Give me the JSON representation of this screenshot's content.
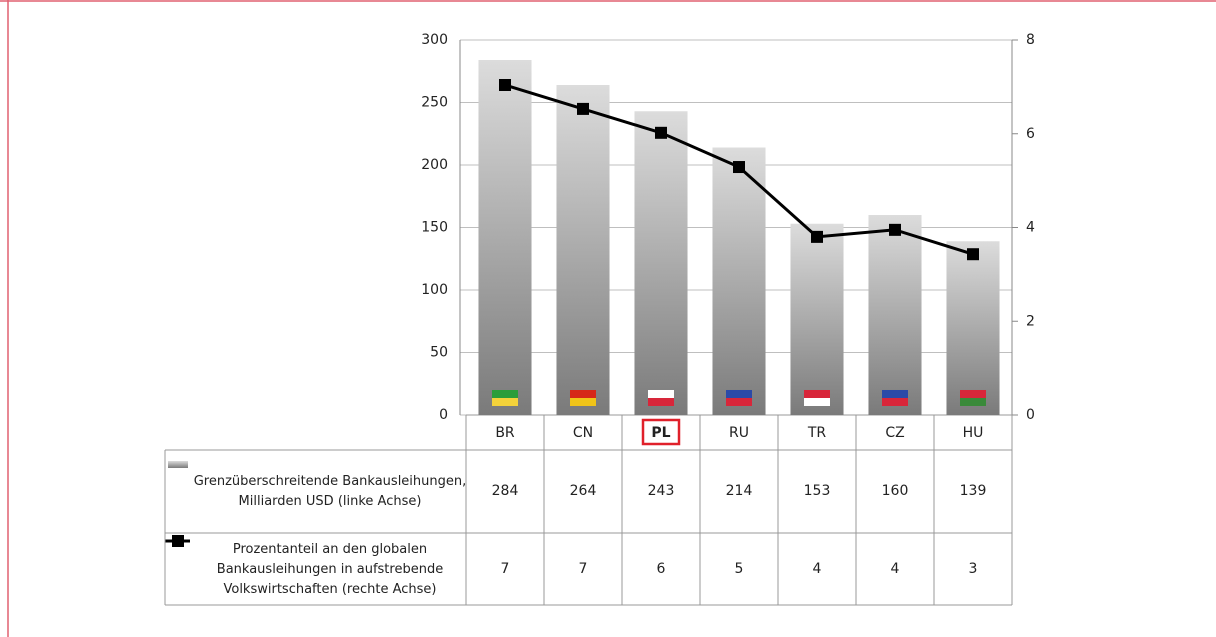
{
  "chart_data": {
    "type": "bar",
    "categories": [
      "BR",
      "CN",
      "PL",
      "RU",
      "TR",
      "CZ",
      "HU"
    ],
    "highlight": "PL",
    "series": [
      {
        "name": "Grenzüberschreitende Bankausleihungen, Milliarden USD (linke Achse)",
        "type": "bar",
        "color": "#8c8c8c",
        "values": [
          284,
          264,
          243,
          214,
          153,
          160,
          139
        ]
      },
      {
        "name": "Prozentanteil an den globalen Bankausleihungen in aufstrebende Volkswirtschaften (rechte Achse)",
        "type": "line",
        "axis": "y2",
        "color": "#000000",
        "values": [
          7.04,
          6.53,
          6.02,
          5.29,
          3.8,
          3.95,
          3.43
        ],
        "value_labels": [
          "7",
          "7",
          "6",
          "5",
          "4",
          "4",
          "3"
        ]
      }
    ],
    "ylim": [
      0,
      300
    ],
    "yticks": [
      0,
      50,
      100,
      150,
      200,
      250,
      300
    ],
    "y2lim": [
      0,
      8
    ],
    "y2ticks": [
      0,
      2,
      4,
      6,
      8
    ],
    "grid": true
  }
}
